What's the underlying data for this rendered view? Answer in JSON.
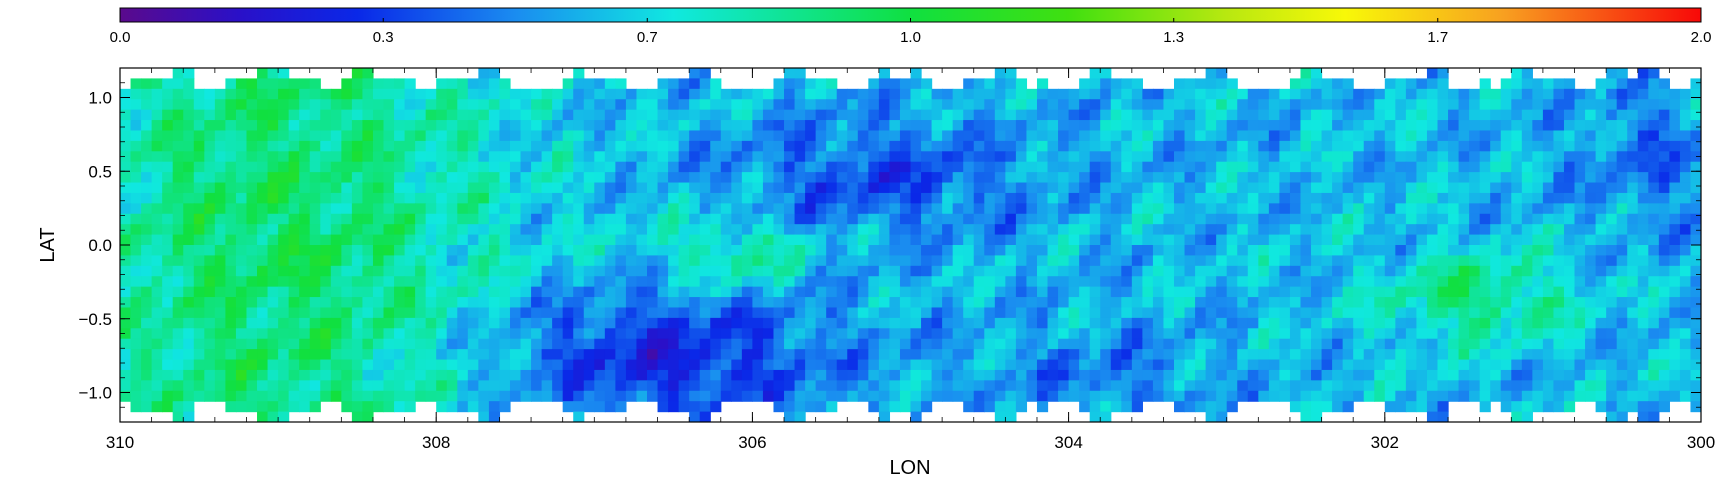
{
  "chart_data": {
    "type": "heatmap",
    "title": "",
    "xlabel": "LON",
    "ylabel": "LAT",
    "xlim": [
      310,
      300
    ],
    "ylim": [
      -1.2,
      1.2
    ],
    "x_reversed": true,
    "x_ticks": [
      310,
      308,
      306,
      304,
      302,
      300
    ],
    "x_tick_labels": [
      "310",
      "308",
      "306",
      "304",
      "302",
      "300"
    ],
    "y_ticks": [
      1.0,
      0.5,
      0.0,
      -0.5,
      -1.0
    ],
    "y_tick_labels": [
      "1.0",
      "0.5",
      "0.0",
      "−0.5",
      "−1.0"
    ],
    "grid": false,
    "colorbar": {
      "position": "top",
      "range": [
        0.0,
        2.0
      ],
      "tick_values": [
        0.0,
        0.333,
        0.667,
        1.0,
        1.333,
        1.667,
        2.0
      ],
      "tick_labels": [
        "0.0",
        "0.3",
        "0.7",
        "1.0",
        "1.3",
        "1.7",
        "2.0"
      ],
      "colormap": "rainbow"
    },
    "colormap_stops": [
      {
        "v": 0.0,
        "color": "#5a0a8c"
      },
      {
        "v": 0.15,
        "color": "#2a10c8"
      },
      {
        "v": 0.3,
        "color": "#0a28e8"
      },
      {
        "v": 0.5,
        "color": "#1a8cf0"
      },
      {
        "v": 0.7,
        "color": "#10e8e0"
      },
      {
        "v": 1.0,
        "color": "#10e040"
      },
      {
        "v": 1.2,
        "color": "#40e010"
      },
      {
        "v": 1.4,
        "color": "#b8e810"
      },
      {
        "v": 1.55,
        "color": "#f8f808"
      },
      {
        "v": 1.75,
        "color": "#f8a020"
      },
      {
        "v": 2.0,
        "color": "#f80808"
      }
    ],
    "grid_resolution": [
      150,
      34
    ],
    "regions": [
      {
        "name": "green-west-band",
        "lon_range": [
          310,
          307.5
        ],
        "lat_range": [
          -1.2,
          1.2
        ],
        "typical_value": 0.95
      },
      {
        "name": "deep-blue-southern-hole",
        "lon_range": [
          308,
          305
        ],
        "lat_range": [
          -1.2,
          -0.3
        ],
        "typical_value": 0.25
      },
      {
        "name": "blue-central-north",
        "lon_range": [
          306.5,
          304
        ],
        "lat_range": [
          0.0,
          0.9
        ],
        "typical_value": 0.35
      },
      {
        "name": "cyan-east",
        "lon_range": [
          304,
          300
        ],
        "lat_range": [
          -1.2,
          1.2
        ],
        "typical_value": 0.65
      },
      {
        "name": "green-clump-east",
        "lon_range": [
          302,
          300.7
        ],
        "lat_range": [
          -0.6,
          -0.1
        ],
        "typical_value": 0.95
      }
    ]
  }
}
